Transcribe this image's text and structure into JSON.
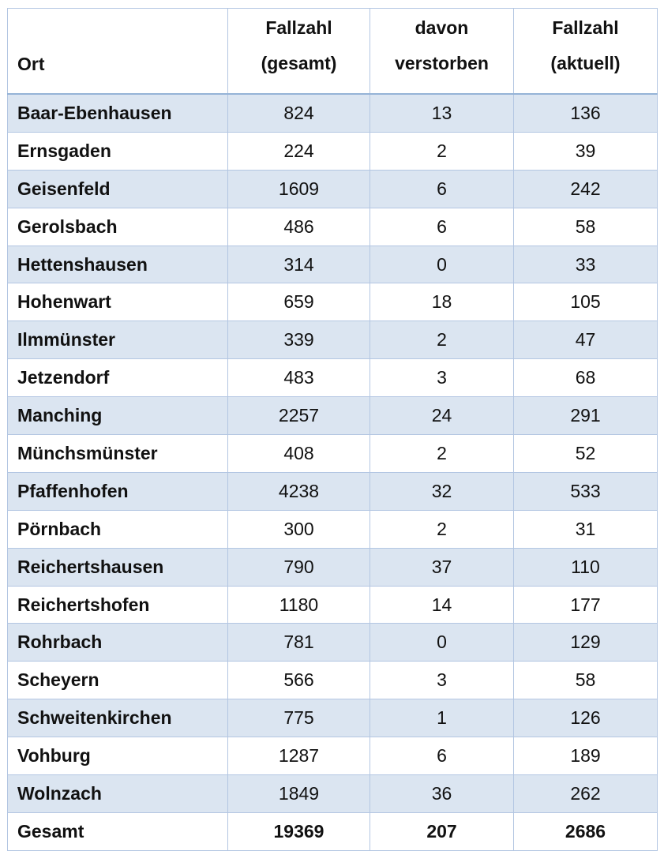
{
  "headers": {
    "ort": "Ort",
    "gesamt": [
      "Fallzahl",
      "(gesamt)"
    ],
    "verstorben": [
      "davon",
      "verstorben"
    ],
    "aktuell": [
      "Fallzahl",
      "(aktuell)"
    ]
  },
  "rows": [
    [
      "Baar-Ebenhausen",
      "824",
      "13",
      "136"
    ],
    [
      "Ernsgaden",
      "224",
      "2",
      "39"
    ],
    [
      "Geisenfeld",
      "1609",
      "6",
      "242"
    ],
    [
      "Gerolsbach",
      "486",
      "6",
      "58"
    ],
    [
      "Hettenshausen",
      "314",
      "0",
      "33"
    ],
    [
      "Hohenwart",
      "659",
      "18",
      "105"
    ],
    [
      "Ilmmünster",
      "339",
      "2",
      "47"
    ],
    [
      "Jetzendorf",
      "483",
      "3",
      "68"
    ],
    [
      "Manching",
      "2257",
      "24",
      "291"
    ],
    [
      "Münchsmünster",
      "408",
      "2",
      "52"
    ],
    [
      "Pfaffenhofen",
      "4238",
      "32",
      "533"
    ],
    [
      "Pörnbach",
      "300",
      "2",
      "31"
    ],
    [
      "Reichertshausen",
      "790",
      "37",
      "110"
    ],
    [
      "Reichertshofen",
      "1180",
      "14",
      "177"
    ],
    [
      "Rohrbach",
      "781",
      "0",
      "129"
    ],
    [
      "Scheyern",
      "566",
      "3",
      "58"
    ],
    [
      "Schweitenkirchen",
      "775",
      "1",
      "126"
    ],
    [
      "Vohburg",
      "1287",
      "6",
      "189"
    ],
    [
      "Wolnzach",
      "1849",
      "36",
      "262"
    ]
  ],
  "total": [
    "Gesamt",
    "19369",
    "207",
    "2686"
  ],
  "colors": {
    "shade": "#dbe5f1",
    "border": "#b3c6e2"
  }
}
